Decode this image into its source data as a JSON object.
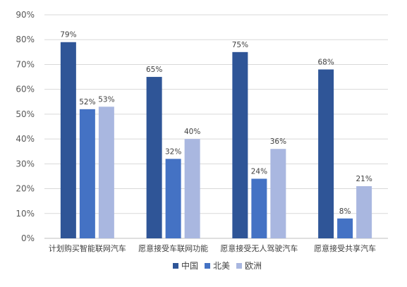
{
  "chart_data": {
    "type": "bar",
    "categories": [
      "计划购买智能联网汽车",
      "愿意接受车联网功能",
      "愿意接受无人驾驶汽车",
      "愿意接受共享汽车"
    ],
    "series": [
      {
        "name": "中国",
        "color": "#2f5597",
        "values": [
          79,
          65,
          75,
          68
        ],
        "labels": [
          "79%",
          "65%",
          "75%",
          "68%"
        ]
      },
      {
        "name": "北美",
        "color": "#4472c4",
        "values": [
          52,
          32,
          24,
          8
        ],
        "labels": [
          "52%",
          "32%",
          "24%",
          "8%"
        ]
      },
      {
        "name": "欧洲",
        "color": "#a9b7e0",
        "values": [
          53,
          40,
          36,
          21
        ],
        "labels": [
          "53%",
          "40%",
          "36%",
          "21%"
        ]
      }
    ],
    "ylim": [
      0,
      90
    ],
    "yticks": [
      0,
      10,
      20,
      30,
      40,
      50,
      60,
      70,
      80,
      90
    ],
    "ytick_labels": [
      "0%",
      "10%",
      "20%",
      "30%",
      "40%",
      "50%",
      "60%",
      "70%",
      "80%",
      "90%"
    ],
    "grid": true,
    "legend_position": "bottom"
  }
}
